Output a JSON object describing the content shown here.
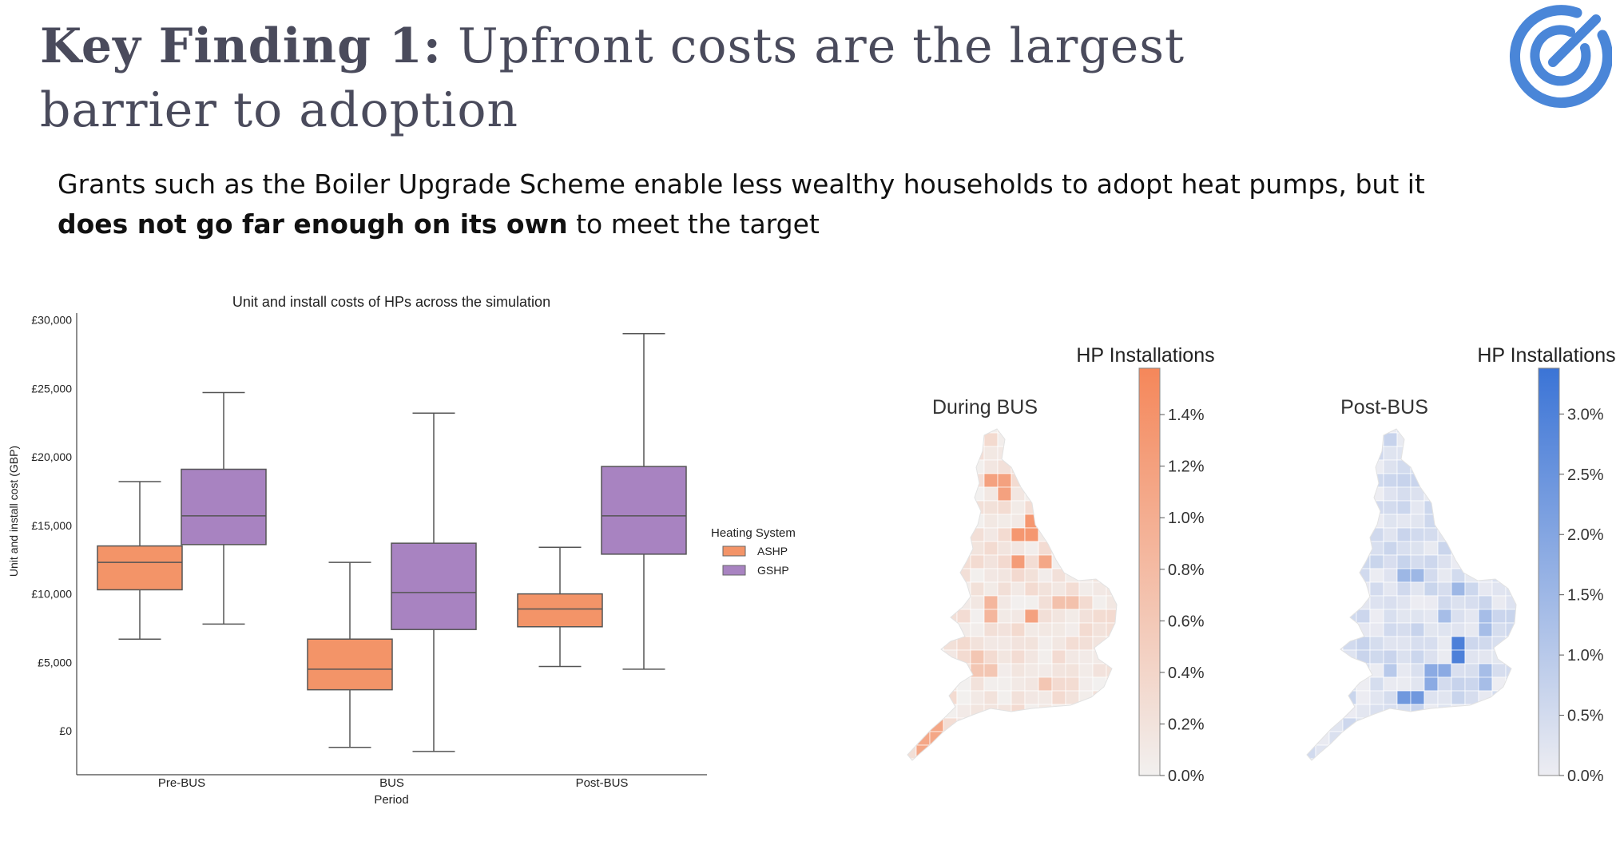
{
  "slide": {
    "title_bold": "Key Finding 1:",
    "title_rest": "Upfront costs are the largest barrier to adoption",
    "subtitle_start": "Grants such as the Boiler Upgrade Scheme enable less wealthy households to adopt heat pumps, but it",
    "subtitle_bold": "does not go far enough on its own",
    "subtitle_end": "to meet the target"
  },
  "logo": {
    "icon": "target-arrow-logo",
    "color": "#4a86d8"
  },
  "chart_data": [
    {
      "type": "box",
      "title": "Unit and install costs of HPs across the simulation",
      "xlabel": "Period",
      "ylabel": "Unit and install cost (GBP)",
      "categories": [
        "Pre-BUS",
        "BUS",
        "Post-BUS"
      ],
      "ylim": [
        -3200,
        30500
      ],
      "yticks": [
        0,
        5000,
        10000,
        15000,
        20000,
        25000,
        30000
      ],
      "ytick_labels": [
        "£0",
        "£5,000",
        "£10,000",
        "£15,000",
        "£20,000",
        "£25,000",
        "£30,000"
      ],
      "legend_title": "Heating System",
      "legend_position": "right",
      "series": [
        {
          "name": "ASHP",
          "color": "#f39468",
          "boxes": [
            {
              "whislo": 6700,
              "q1": 10300,
              "med": 12300,
              "q3": 13500,
              "whishi": 18200
            },
            {
              "whislo": -1200,
              "q1": 3000,
              "med": 4500,
              "q3": 6700,
              "whishi": 12300
            },
            {
              "whislo": 4700,
              "q1": 7600,
              "med": 8900,
              "q3": 10000,
              "whishi": 13400
            }
          ]
        },
        {
          "name": "GSHP",
          "color": "#a883c1",
          "boxes": [
            {
              "whislo": 7800,
              "q1": 13600,
              "med": 15700,
              "q3": 19100,
              "whishi": 24700
            },
            {
              "whislo": -1500,
              "q1": 7400,
              "med": 10100,
              "q3": 13700,
              "whishi": 23200
            },
            {
              "whislo": 4500,
              "q1": 12900,
              "med": 15700,
              "q3": 19300,
              "whishi": 29000
            }
          ]
        }
      ]
    },
    {
      "type": "choropleth",
      "title": "During BUS",
      "colorbar_label": "HP Installations",
      "color_low": "#f2f0ef",
      "color_high": "#f5875a",
      "ticks": [
        "0.0%",
        "0.2%",
        "0.4%",
        "0.6%",
        "0.8%",
        "1.0%",
        "1.2%",
        "1.4%"
      ],
      "range": [
        0,
        1.58
      ]
    },
    {
      "type": "choropleth",
      "title": "Post-BUS",
      "colorbar_label": "HP Installations",
      "color_low": "#ededf2",
      "color_high": "#3b74d6",
      "ticks": [
        "0.0%",
        "0.5%",
        "1.0%",
        "1.5%",
        "2.0%",
        "2.5%",
        "3.0%"
      ],
      "range": [
        0,
        3.38
      ]
    }
  ]
}
